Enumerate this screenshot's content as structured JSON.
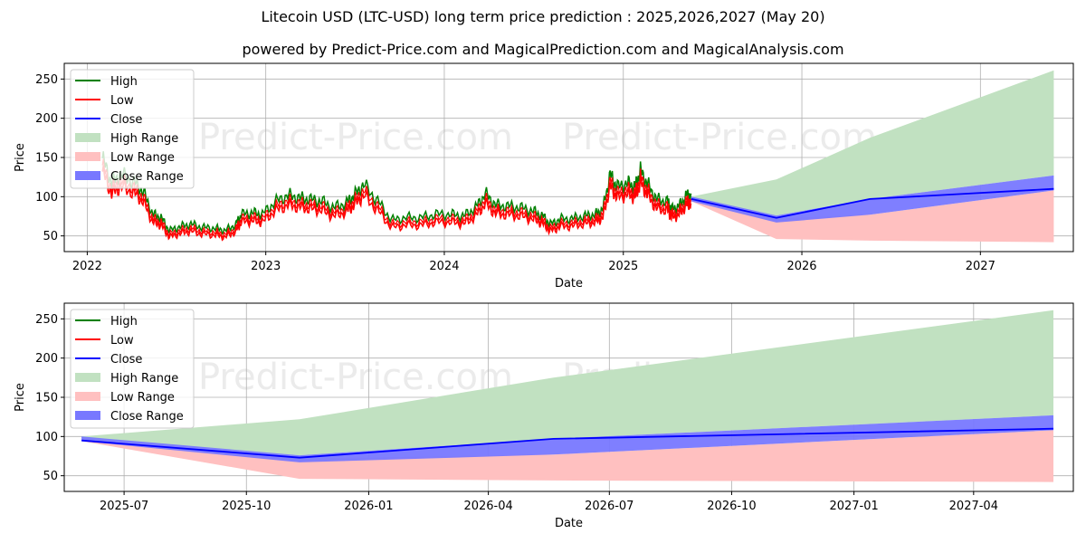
{
  "title": "Litecoin USD (LTC-USD) long term price prediction : 2025,2026,2027 (May 20)",
  "subtitle": "powered by Predict-Price.com and MagicalPrediction.com and MagicalAnalysis.com",
  "watermark": "Predict-Price.com",
  "colors": {
    "high": "#008000",
    "low": "#ff0000",
    "close": "#0000ff",
    "high_range": "#c1e1c1",
    "low_range": "#ffc0c0",
    "close_range": "#7878ff",
    "grid": "#b0b0b0"
  },
  "chart_data": [
    {
      "type": "line",
      "xlabel": "Date",
      "ylabel": "Price",
      "xlim": [
        "2021-11-15",
        "2027-07-10"
      ],
      "ylim": [
        30,
        270
      ],
      "x_ticks": [
        "2022",
        "2023",
        "2024",
        "2025",
        "2026",
        "2027"
      ],
      "y_ticks": [
        50,
        100,
        150,
        200,
        250
      ],
      "grid": true,
      "legend_position": "top-left",
      "legend": [
        "High",
        "Low",
        "Close",
        "High Range",
        "Low Range",
        "Close Range"
      ],
      "history_close": {
        "x": [
          "2022-02-01",
          "2022-02-20",
          "2022-03-10",
          "2022-04-05",
          "2022-04-25",
          "2022-05-15",
          "2022-06-01",
          "2022-06-18",
          "2022-07-10",
          "2022-08-01",
          "2022-08-25",
          "2022-09-20",
          "2022-10-10",
          "2022-11-01",
          "2022-11-12",
          "2022-12-05",
          "2022-12-25",
          "2023-01-20",
          "2023-02-15",
          "2023-03-10",
          "2023-04-01",
          "2023-04-25",
          "2023-05-20",
          "2023-06-15",
          "2023-07-01",
          "2023-07-20",
          "2023-08-18",
          "2023-09-15",
          "2023-10-15",
          "2023-11-15",
          "2023-12-15",
          "2024-01-15",
          "2024-02-10",
          "2024-03-05",
          "2024-03-25",
          "2024-04-15",
          "2024-05-10",
          "2024-06-05",
          "2024-07-01",
          "2024-07-20",
          "2024-08-05",
          "2024-08-25",
          "2024-09-20",
          "2024-10-15",
          "2024-11-05",
          "2024-11-20",
          "2024-12-05",
          "2024-12-20",
          "2025-01-10",
          "2025-01-25",
          "2025-02-05",
          "2025-02-20",
          "2025-03-10",
          "2025-04-01",
          "2025-04-10",
          "2025-04-25",
          "2025-05-10",
          "2025-05-20"
        ],
        "y": [
          140,
          110,
          120,
          112,
          100,
          72,
          68,
          52,
          57,
          60,
          56,
          55,
          52,
          60,
          72,
          74,
          72,
          87,
          95,
          92,
          90,
          88,
          80,
          86,
          95,
          108,
          88,
          65,
          68,
          68,
          72,
          72,
          70,
          80,
          97,
          83,
          82,
          80,
          76,
          70,
          60,
          66,
          67,
          70,
          72,
          78,
          120,
          105,
          110,
          105,
          125,
          108,
          90,
          88,
          78,
          82,
          95,
          97
        ]
      },
      "forecast": {
        "x": [
          "2025-05-20",
          "2025-11-10",
          "2026-05-20",
          "2027-05-31"
        ],
        "close": [
          97,
          73,
          97,
          110
        ],
        "high_range": [
          [
            100,
            97
          ],
          [
            122,
            76
          ],
          [
            175,
            97
          ],
          [
            261,
            127
          ]
        ],
        "low_range": [
          [
            97,
            94
          ],
          [
            72,
            46
          ],
          [
            77,
            44
          ],
          [
            108,
            42
          ]
        ],
        "close_range": [
          [
            100,
            94
          ],
          [
            76,
            67
          ],
          [
            97,
            77
          ],
          [
            127,
            108
          ]
        ]
      }
    },
    {
      "type": "area",
      "xlabel": "Date",
      "ylabel": "Price",
      "xlim": [
        "2025-05-17",
        "2027-06-15"
      ],
      "ylim": [
        30,
        270
      ],
      "x_ticks": [
        "2025-07",
        "2025-10",
        "2026-01",
        "2026-04",
        "2026-07",
        "2026-10",
        "2027-01",
        "2027-04"
      ],
      "y_ticks": [
        50,
        100,
        150,
        200,
        250
      ],
      "grid": true,
      "legend_position": "top-left",
      "legend": [
        "High",
        "Low",
        "Close",
        "High Range",
        "Low Range",
        "Close Range"
      ],
      "forecast": {
        "x": [
          "2025-05-30",
          "2025-11-10",
          "2026-05-20",
          "2027-05-31"
        ],
        "close": [
          95,
          73,
          97,
          110
        ],
        "high_range": [
          [
            100,
            97
          ],
          [
            122,
            76
          ],
          [
            175,
            97
          ],
          [
            261,
            127
          ]
        ],
        "low_range": [
          [
            97,
            94
          ],
          [
            72,
            46
          ],
          [
            77,
            44
          ],
          [
            108,
            42
          ]
        ],
        "close_range": [
          [
            100,
            94
          ],
          [
            76,
            67
          ],
          [
            97,
            77
          ],
          [
            127,
            108
          ]
        ]
      }
    }
  ]
}
